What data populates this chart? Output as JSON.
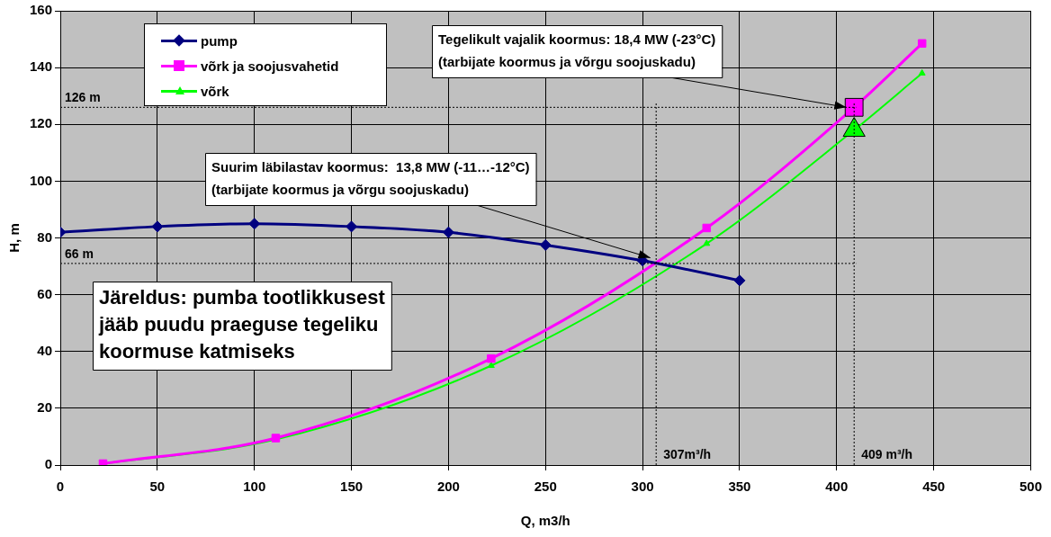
{
  "chart_data": {
    "type": "line",
    "xlabel": "Q, m3/h",
    "ylabel": "H, m",
    "xlim": [
      0,
      500
    ],
    "xticks": [
      0,
      50,
      100,
      150,
      200,
      250,
      300,
      350,
      400,
      450,
      500
    ],
    "ylim": [
      0,
      160
    ],
    "yticks": [
      0,
      20,
      40,
      60,
      80,
      100,
      120,
      140,
      160
    ],
    "grid": true,
    "legend": "top left",
    "line_style": "solid",
    "series": [
      {
        "name": "pump",
        "color": "#000080",
        "marker": "diamond",
        "x": [
          0,
          50,
          100,
          150,
          200,
          250,
          300,
          350
        ],
        "values": [
          82,
          84,
          85,
          84,
          82,
          77.5,
          72,
          65
        ]
      },
      {
        "name": "võrk ja soojusvahetid",
        "color": "#ff00ff",
        "marker": "square",
        "x": [
          22,
          111,
          222,
          333,
          409,
          444
        ],
        "values": [
          0.5,
          9.5,
          37.5,
          83.5,
          126,
          148.5
        ]
      },
      {
        "name": "võrk",
        "color": "#00ff00",
        "marker": "triangle",
        "x": [
          22,
          111,
          222,
          333,
          409,
          444
        ],
        "values": [
          0.5,
          9,
          35,
          78,
          118,
          138
        ]
      }
    ],
    "ref_lines": [
      {
        "axis": "y",
        "value": 126,
        "label": "126 m",
        "line_style": "dotted",
        "color": "#000000"
      },
      {
        "axis": "y",
        "value": 71,
        "label": "66 m",
        "line_style": "dotted",
        "color": "#000000"
      },
      {
        "axis": "x",
        "value": 307,
        "label": "307m³/h",
        "line_style": "dotted",
        "color": "#000000"
      },
      {
        "axis": "x",
        "value": 409,
        "label": "409 m³/h",
        "line_style": "dotted",
        "color": "#000000"
      }
    ],
    "annotations": [
      {
        "text": "Tegelikult vajalik koormus: 18,4 MW (-23°C)\n(tarbijate koormus ja võrgu soojuskadu)",
        "x": 405,
        "y": 126
      },
      {
        "text": "Suurim läbilastav koormus:  13,8 MW (-11…-12°C)\n(tarbijate koormus ja võrgu soojuskadu)",
        "x": 304,
        "y": 73
      },
      "Järeldus: pumba tootlikkusest\njääb puudu praeguse tegeliku\nkoormuse katmiseks"
    ]
  }
}
